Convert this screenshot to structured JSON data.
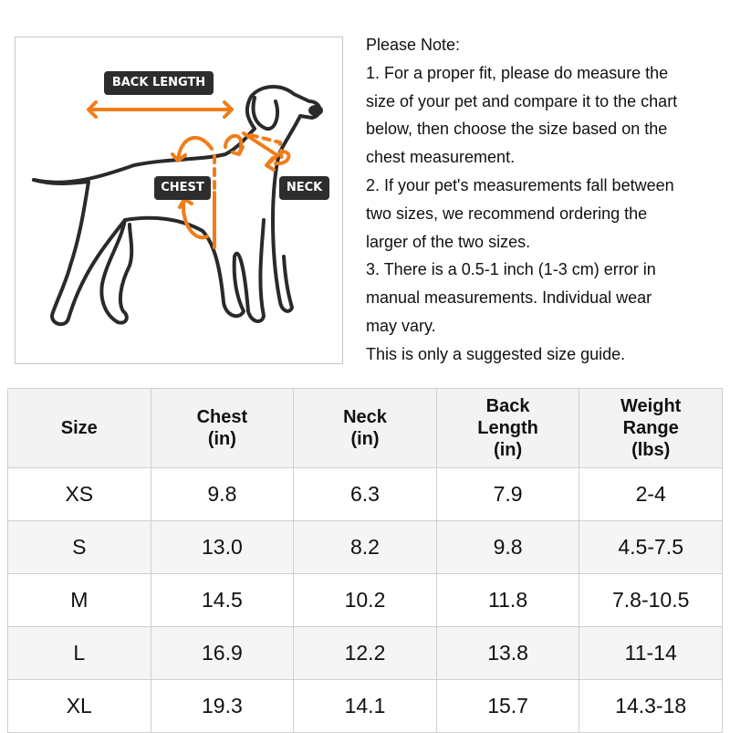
{
  "figure": {
    "labels": {
      "back_length": "BACK LENGTH",
      "chest": "CHEST",
      "neck": "NECK"
    },
    "accent_color": "#f07d1a",
    "label_bg": "#2d2d2d"
  },
  "notes": [
    "Please Note:",
    "1. For a proper fit, please do measure the",
    "size of your pet and compare it to the chart",
    "below, then choose the size based on the",
    "chest measurement.",
    "2. If your pet's measurements fall between",
    "two sizes, we recommend ordering the",
    "larger of the two sizes.",
    "3. There is a 0.5-1 inch (1-3 cm) error in",
    "manual measurements. Individual wear",
    "may vary.",
    "This is only a suggested size guide."
  ],
  "table": {
    "headers": [
      [
        "Size"
      ],
      [
        "Chest",
        "(in)"
      ],
      [
        "Neck",
        "(in)"
      ],
      [
        "Back",
        "Length",
        "(in)"
      ],
      [
        "Weight",
        "Range",
        "(lbs)"
      ]
    ],
    "rows": [
      [
        "XS",
        "9.8",
        "6.3",
        "7.9",
        "2-4"
      ],
      [
        "S",
        "13.0",
        "8.2",
        "9.8",
        "4.5-7.5"
      ],
      [
        "M",
        "14.5",
        "10.2",
        "11.8",
        "7.8-10.5"
      ],
      [
        "L",
        "16.9",
        "12.2",
        "13.8",
        "11-14"
      ],
      [
        "XL",
        "19.3",
        "14.1",
        "15.7",
        "14.3-18"
      ]
    ]
  }
}
